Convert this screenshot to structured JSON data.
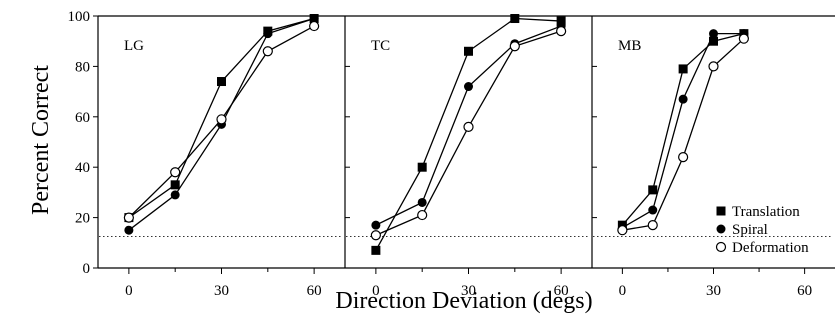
{
  "chart_data": [
    {
      "type": "line",
      "panel_label": "LG",
      "x": [
        0,
        15,
        30,
        45,
        60
      ],
      "series": [
        {
          "name": "Translation",
          "marker": "filled-square",
          "values": [
            20,
            33,
            74,
            94,
            99
          ]
        },
        {
          "name": "Spiral",
          "marker": "filled-circle",
          "values": [
            15,
            29,
            57,
            93,
            99
          ]
        },
        {
          "name": "Deformation",
          "marker": "open-circle",
          "values": [
            20,
            38,
            59,
            86,
            96
          ]
        }
      ],
      "chance_level": 12.5,
      "xticks": [
        "0",
        "30",
        "60"
      ],
      "yticks": [
        "0",
        "20",
        "40",
        "60",
        "80",
        "100"
      ],
      "xlim": [
        -10,
        70
      ],
      "ylim": [
        0,
        100
      ]
    },
    {
      "type": "line",
      "panel_label": "TC",
      "x": [
        0,
        15,
        30,
        45,
        60
      ],
      "series": [
        {
          "name": "Translation",
          "marker": "filled-square",
          "values": [
            7,
            40,
            86,
            99,
            98
          ]
        },
        {
          "name": "Spiral",
          "marker": "filled-circle",
          "values": [
            17,
            26,
            72,
            89,
            96
          ]
        },
        {
          "name": "Deformation",
          "marker": "open-circle",
          "values": [
            13,
            21,
            56,
            88,
            94
          ]
        }
      ],
      "chance_level": 12.5,
      "xticks": [
        "0",
        "30",
        "60"
      ],
      "xlim": [
        -10,
        70
      ],
      "ylim": [
        0,
        100
      ]
    },
    {
      "type": "line",
      "panel_label": "MB",
      "x": [
        0,
        10,
        20,
        30,
        40
      ],
      "series": [
        {
          "name": "Translation",
          "marker": "filled-square",
          "values": [
            17,
            31,
            79,
            90,
            93
          ]
        },
        {
          "name": "Spiral",
          "marker": "filled-circle",
          "values": [
            16,
            23,
            67,
            93,
            93
          ]
        },
        {
          "name": "Deformation",
          "marker": "open-circle",
          "values": [
            15,
            17,
            44,
            80,
            91
          ]
        }
      ],
      "chance_level": 12.5,
      "xticks": [
        "0",
        "30",
        "60"
      ],
      "xlim": [
        -10,
        70
      ],
      "ylim": [
        0,
        100
      ]
    }
  ],
  "ylabel": "Percent Correct",
  "xlabel": "Direction Deviation (degs)",
  "legend": {
    "placement": "bottom-right of third panel",
    "entries": [
      {
        "name": "Translation",
        "marker": "filled-square"
      },
      {
        "name": "Spiral",
        "marker": "filled-circle"
      },
      {
        "name": "Deformation",
        "marker": "open-circle"
      }
    ]
  }
}
